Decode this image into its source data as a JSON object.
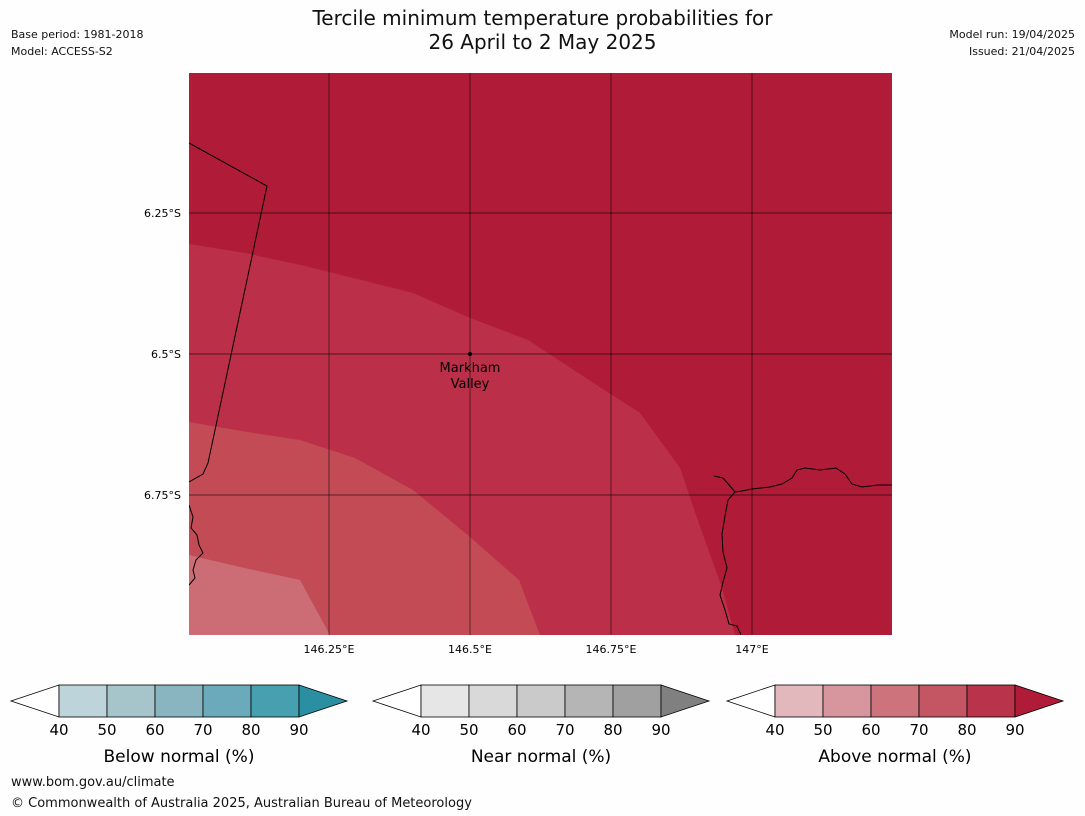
{
  "header": {
    "title_line1": "Tercile minimum temperature probabilities for",
    "title_line2": "26 April to 2 May 2025",
    "base_period": "Base period: 1981-2018",
    "model": "Model: ACCESS-S2",
    "model_run": "Model run: 19/04/2025",
    "issued": "Issued: 21/04/2025"
  },
  "map": {
    "lat_labels": [
      "6.25°S",
      "6.5°S",
      "6.75°S"
    ],
    "lon_labels": [
      "146.25°E",
      "146.5°E",
      "146.75°E",
      "147°E"
    ],
    "place_label_line1": "Markham",
    "place_label_line2": "Valley",
    "probability_colors": {
      "above_90": "#b01c38",
      "above_80_90": "#bb3048",
      "above_70_80": "#c24b55",
      "above_60_70": "#cc6c75"
    }
  },
  "legends": [
    {
      "label": "Below normal (%)",
      "ticks": [
        "40",
        "50",
        "60",
        "70",
        "80",
        "90"
      ],
      "colors": [
        "#bdd4da",
        "#a6c5cb",
        "#89b5c1",
        "#6aaabb",
        "#47a0b0",
        "#2a8fa2"
      ]
    },
    {
      "label": "Near normal (%)",
      "ticks": [
        "40",
        "50",
        "60",
        "70",
        "80",
        "90"
      ],
      "colors": [
        "#e6e6e6",
        "#d9d9d9",
        "#cacaca",
        "#b5b5b5",
        "#a0a0a0",
        "#808080"
      ]
    },
    {
      "label": "Above normal (%)",
      "ticks": [
        "40",
        "50",
        "60",
        "70",
        "80",
        "90"
      ],
      "colors": [
        "#e2b8bd",
        "#d7959d",
        "#cd737b",
        "#c45563",
        "#b9334a",
        "#b01c38"
      ]
    }
  ],
  "footer": {
    "url": "www.bom.gov.au/climate",
    "copyright": "© Commonwealth of Australia 2025, Australian Bureau of Meteorology"
  }
}
